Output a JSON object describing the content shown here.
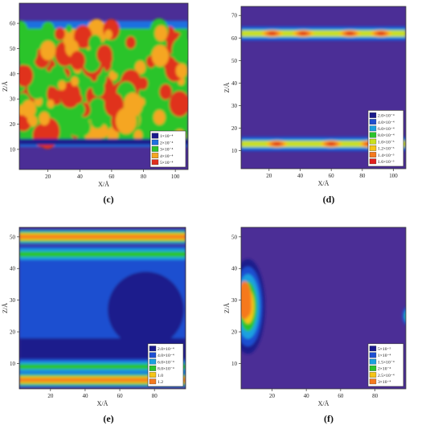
{
  "chart_data": [
    {
      "type": "heatmap",
      "panel_label": "(c)",
      "xlabel": "X/Å",
      "ylabel": "Z/Å",
      "x_ticks": [
        20,
        40,
        60,
        80,
        100
      ],
      "y_ticks": [
        10,
        20,
        30,
        40,
        50,
        60
      ],
      "xlim": [
        2,
        108
      ],
      "ylim": [
        2,
        68
      ],
      "legend": {
        "position": "bottom-right",
        "entries": [
          {
            "label": "1×10⁻⁴",
            "color": "#1a1a8c"
          },
          {
            "label": "2×10⁻⁴",
            "color": "#1f6fe0"
          },
          {
            "label": "3×10⁻⁴",
            "color": "#2cc42c"
          },
          {
            "label": "4×10⁻⁴",
            "color": "#f5a623"
          },
          {
            "label": "5×10⁻⁴",
            "color": "#e0301e"
          }
        ]
      },
      "background_color": "#4b2e96",
      "bands": [
        {
          "y_range": [
            12,
            60
          ],
          "description": "dense mottled region",
          "levels": [
            2,
            3,
            4,
            5
          ]
        }
      ]
    },
    {
      "type": "heatmap",
      "panel_label": "(d)",
      "xlabel": "X/Å",
      "ylabel": "Z/Å",
      "x_ticks": [
        20,
        40,
        60,
        80,
        100
      ],
      "y_ticks": [
        10,
        20,
        30,
        40,
        50,
        60,
        70
      ],
      "xlim": [
        2,
        108
      ],
      "ylim": [
        2,
        74
      ],
      "legend": {
        "position": "bottom-right",
        "entries": [
          {
            "label": "2.0×10⁻⁴",
            "color": "#1a1a8c"
          },
          {
            "label": "4.0×10⁻⁴",
            "color": "#1f4fd0"
          },
          {
            "label": "6.0×10⁻⁴",
            "color": "#1aa0e0"
          },
          {
            "label": "8.0×10⁻⁴",
            "color": "#2cc42c"
          },
          {
            "label": "1.0×10⁻³",
            "color": "#c8e020"
          },
          {
            "label": "1.2×10⁻³",
            "color": "#f5c518"
          },
          {
            "label": "1.4×10⁻³",
            "color": "#f5791e"
          },
          {
            "label": "1.6×10⁻³",
            "color": "#e0201e"
          }
        ]
      },
      "background_color": "#4b2e96",
      "bands": [
        {
          "y_center": 62,
          "hotspots_x": [
            22,
            42,
            72,
            92
          ]
        },
        {
          "y_center": 13,
          "hotspots_x": [
            25,
            60,
            85
          ]
        }
      ]
    },
    {
      "type": "heatmap",
      "panel_label": "(e)",
      "xlabel": "X/Å",
      "ylabel": "Z/Å",
      "x_ticks": [
        20,
        40,
        60,
        80
      ],
      "y_ticks": [
        10,
        20,
        30,
        40,
        50
      ],
      "xlim": [
        2,
        98
      ],
      "ylim": [
        2,
        53
      ],
      "legend": {
        "position": "bottom-right",
        "entries": [
          {
            "label": "2.0×10⁻⁴",
            "color": "#1a1a8c"
          },
          {
            "label": "4.0×10⁻⁴",
            "color": "#1f4fd0"
          },
          {
            "label": "6.0×10⁻⁴",
            "color": "#1aa0e0"
          },
          {
            "label": "8.0×10⁻⁴",
            "color": "#2cc42c"
          },
          {
            "label": "1.0",
            "color": "#f5c518"
          },
          {
            "label": "1.2",
            "color": "#f5791e"
          }
        ]
      },
      "background_color": "#4b2e96",
      "bands": [
        {
          "y_center": 50,
          "level": "high"
        },
        {
          "y_center": 45,
          "level": "medium"
        },
        {
          "y_center": 9,
          "level": "medium"
        },
        {
          "y_center": 5,
          "level": "high"
        }
      ]
    },
    {
      "type": "heatmap",
      "panel_label": "(f)",
      "xlabel": "X/Å",
      "ylabel": "Z/Å",
      "x_ticks": [
        20,
        40,
        60,
        80
      ],
      "y_ticks": [
        10,
        20,
        30,
        40,
        50
      ],
      "xlim": [
        2,
        98
      ],
      "ylim": [
        2,
        53
      ],
      "legend": {
        "position": "bottom-right",
        "entries": [
          {
            "label": "5×10⁻⁵",
            "color": "#1a1a8c"
          },
          {
            "label": "1×10⁻⁴",
            "color": "#1f4fd0"
          },
          {
            "label": "1.5×10⁻⁴",
            "color": "#1aa0e0"
          },
          {
            "label": "2×10⁻⁴",
            "color": "#2cc42c"
          },
          {
            "label": "2.5×10⁻⁴",
            "color": "#f5c518"
          },
          {
            "label": "3×10⁻⁴",
            "color": "#f5791e"
          }
        ]
      },
      "background_color": "#4b2e96",
      "bands": [
        {
          "x_center": 8,
          "y_range": [
            15,
            42
          ],
          "description": "left blob"
        },
        {
          "x_center": 98,
          "y_center": 25,
          "description": "right edge spot"
        }
      ]
    }
  ]
}
